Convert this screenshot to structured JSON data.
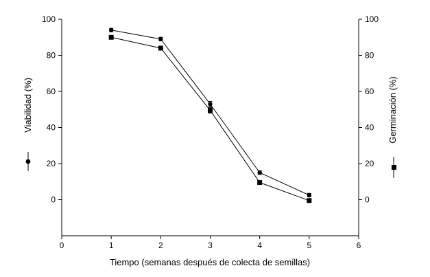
{
  "chart_data": {
    "type": "line",
    "xlabel": "Tiempo (semanas después de colecta de semillas)",
    "ylabel_left": "Viabilidad  (%)",
    "ylabel_right": "Germinación (%)",
    "xlim": [
      0,
      6
    ],
    "ylim": [
      -20,
      100
    ],
    "x_ticks": [
      0,
      1,
      2,
      3,
      4,
      5,
      6
    ],
    "y_ticks": [
      0,
      20,
      40,
      60,
      80,
      100
    ],
    "grid": false,
    "x": [
      1,
      2,
      3,
      4,
      5
    ],
    "series": [
      {
        "name": "Viabilidad",
        "axis": "left",
        "marker": "circle",
        "values": [
          94,
          89,
          53,
          15,
          2.5
        ],
        "errors": [
          1,
          1,
          1.5,
          1,
          1
        ]
      },
      {
        "name": "Germinación",
        "axis": "right",
        "marker": "square",
        "values": [
          90,
          84,
          49.5,
          9.5,
          -0.5
        ],
        "errors": [
          1,
          1,
          1.5,
          1,
          1
        ]
      }
    ]
  }
}
